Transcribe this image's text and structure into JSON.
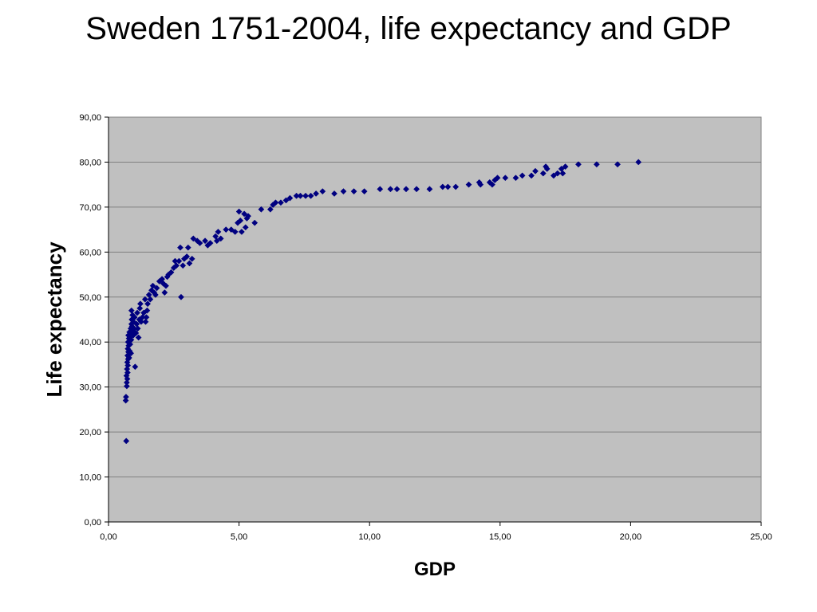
{
  "chart_data": {
    "type": "scatter",
    "title": "Sweden 1751-2004, life expectancy and GDP",
    "xlabel": "GDP",
    "ylabel": "Life expectancy",
    "xlim": [
      0,
      25
    ],
    "ylim": [
      0,
      90
    ],
    "x_ticks": [
      "0,00",
      "5,00",
      "10,00",
      "15,00",
      "20,00",
      "25,00"
    ],
    "y_ticks": [
      "0,00",
      "10,00",
      "20,00",
      "30,00",
      "40,00",
      "50,00",
      "60,00",
      "70,00",
      "80,00",
      "90,00"
    ],
    "grid": true,
    "legend": "none",
    "colors": {
      "plot_background": "#c0c0c0",
      "marker": "#000080",
      "gridline": "#808080"
    },
    "points": [
      [
        0.68,
        18.0
      ],
      [
        0.66,
        27.0
      ],
      [
        0.67,
        27.8
      ],
      [
        0.7,
        30.2
      ],
      [
        0.7,
        31.0
      ],
      [
        0.72,
        31.8
      ],
      [
        0.69,
        32.5
      ],
      [
        0.73,
        33.2
      ],
      [
        0.71,
        34.0
      ],
      [
        0.74,
        34.8
      ],
      [
        0.72,
        35.5
      ],
      [
        0.75,
        36.2
      ],
      [
        0.73,
        37.0
      ],
      [
        0.76,
        37.8
      ],
      [
        0.74,
        38.5
      ],
      [
        0.77,
        39.2
      ],
      [
        0.75,
        40.0
      ],
      [
        0.78,
        40.8
      ],
      [
        0.76,
        41.5
      ],
      [
        0.8,
        42.2
      ],
      [
        0.79,
        36.5
      ],
      [
        0.81,
        38.0
      ],
      [
        0.83,
        39.5
      ],
      [
        0.82,
        41.0
      ],
      [
        0.85,
        43.0
      ],
      [
        0.84,
        42.0
      ],
      [
        0.86,
        37.5
      ],
      [
        0.87,
        40.5
      ],
      [
        0.88,
        44.0
      ],
      [
        0.89,
        45.0
      ],
      [
        0.9,
        43.5
      ],
      [
        0.92,
        46.0
      ],
      [
        0.88,
        47.0
      ],
      [
        0.93,
        42.5
      ],
      [
        0.95,
        41.5
      ],
      [
        0.96,
        44.5
      ],
      [
        0.98,
        43.0
      ],
      [
        1.0,
        45.5
      ],
      [
        1.02,
        34.5
      ],
      [
        1.05,
        42.0
      ],
      [
        1.08,
        44.0
      ],
      [
        1.1,
        46.5
      ],
      [
        1.12,
        43.0
      ],
      [
        1.15,
        41.0
      ],
      [
        1.18,
        45.0
      ],
      [
        1.2,
        47.5
      ],
      [
        1.22,
        48.5
      ],
      [
        1.25,
        44.5
      ],
      [
        1.3,
        45.5
      ],
      [
        1.35,
        46.5
      ],
      [
        1.4,
        49.5
      ],
      [
        1.42,
        44.5
      ],
      [
        1.45,
        45.5
      ],
      [
        1.48,
        47.0
      ],
      [
        1.5,
        48.5
      ],
      [
        1.55,
        50.5
      ],
      [
        1.6,
        49.5
      ],
      [
        1.65,
        51.5
      ],
      [
        1.7,
        52.5
      ],
      [
        1.75,
        51.0
      ],
      [
        1.8,
        50.5
      ],
      [
        1.85,
        52.0
      ],
      [
        1.95,
        53.5
      ],
      [
        2.05,
        54.0
      ],
      [
        2.1,
        53.0
      ],
      [
        2.15,
        51.0
      ],
      [
        2.2,
        52.5
      ],
      [
        2.25,
        54.5
      ],
      [
        2.3,
        55.0
      ],
      [
        2.4,
        55.5
      ],
      [
        2.5,
        56.5
      ],
      [
        2.55,
        58.0
      ],
      [
        2.6,
        57.0
      ],
      [
        2.7,
        58.0
      ],
      [
        2.75,
        61.0
      ],
      [
        2.78,
        50.0
      ],
      [
        2.85,
        57.0
      ],
      [
        2.9,
        58.5
      ],
      [
        3.0,
        59.0
      ],
      [
        3.05,
        61.0
      ],
      [
        3.1,
        57.5
      ],
      [
        3.2,
        58.5
      ],
      [
        3.25,
        63.0
      ],
      [
        3.4,
        62.5
      ],
      [
        3.5,
        62.0
      ],
      [
        3.7,
        62.5
      ],
      [
        3.8,
        61.5
      ],
      [
        3.9,
        62.0
      ],
      [
        4.1,
        63.5
      ],
      [
        4.15,
        62.5
      ],
      [
        4.2,
        64.5
      ],
      [
        4.3,
        63.0
      ],
      [
        4.5,
        65.0
      ],
      [
        4.7,
        65.0
      ],
      [
        4.85,
        64.5
      ],
      [
        4.95,
        66.5
      ],
      [
        5.0,
        69.0
      ],
      [
        5.05,
        67.0
      ],
      [
        5.1,
        64.5
      ],
      [
        5.2,
        68.5
      ],
      [
        5.25,
        65.5
      ],
      [
        5.3,
        67.5
      ],
      [
        5.35,
        68.0
      ],
      [
        5.6,
        66.5
      ],
      [
        5.85,
        69.5
      ],
      [
        6.2,
        69.5
      ],
      [
        6.3,
        70.5
      ],
      [
        6.4,
        71.0
      ],
      [
        6.6,
        71.0
      ],
      [
        6.8,
        71.5
      ],
      [
        6.95,
        72.0
      ],
      [
        7.2,
        72.5
      ],
      [
        7.35,
        72.5
      ],
      [
        7.55,
        72.5
      ],
      [
        7.75,
        72.5
      ],
      [
        7.95,
        73.0
      ],
      [
        8.2,
        73.5
      ],
      [
        8.65,
        73.0
      ],
      [
        9.0,
        73.5
      ],
      [
        9.4,
        73.5
      ],
      [
        9.8,
        73.5
      ],
      [
        10.4,
        74.0
      ],
      [
        10.8,
        74.0
      ],
      [
        11.05,
        74.0
      ],
      [
        11.4,
        74.0
      ],
      [
        11.8,
        74.0
      ],
      [
        12.3,
        74.0
      ],
      [
        12.8,
        74.5
      ],
      [
        13.0,
        74.5
      ],
      [
        13.3,
        74.5
      ],
      [
        13.8,
        75.0
      ],
      [
        14.2,
        75.5
      ],
      [
        14.25,
        75.0
      ],
      [
        14.6,
        75.5
      ],
      [
        14.7,
        75.0
      ],
      [
        14.8,
        76.0
      ],
      [
        14.9,
        76.5
      ],
      [
        15.2,
        76.5
      ],
      [
        15.6,
        76.5
      ],
      [
        15.85,
        77.0
      ],
      [
        16.2,
        77.0
      ],
      [
        16.35,
        78.0
      ],
      [
        16.65,
        77.5
      ],
      [
        16.8,
        78.5
      ],
      [
        16.75,
        79.0
      ],
      [
        17.05,
        77.0
      ],
      [
        17.2,
        77.5
      ],
      [
        17.35,
        78.5
      ],
      [
        17.4,
        77.5
      ],
      [
        17.5,
        79.0
      ],
      [
        18.0,
        79.5
      ],
      [
        18.7,
        79.5
      ],
      [
        19.5,
        79.5
      ],
      [
        20.3,
        80.0
      ]
    ]
  }
}
